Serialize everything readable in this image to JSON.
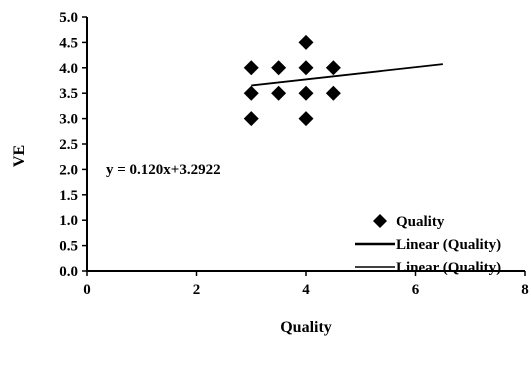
{
  "chart_data": {
    "type": "scatter",
    "xlabel": "Quality",
    "ylabel": "VE",
    "xlim": [
      0,
      8
    ],
    "ylim": [
      0.0,
      5.0
    ],
    "x_ticks": [
      0,
      2,
      4,
      6,
      8
    ],
    "y_ticks": [
      0.0,
      0.5,
      1.0,
      1.5,
      2.0,
      2.5,
      3.0,
      3.5,
      4.0,
      4.5,
      5.0
    ],
    "x_tick_labels": [
      "0",
      "2",
      "4",
      "6",
      "8"
    ],
    "y_tick_labels": [
      "0.0",
      "0.5",
      "1.0",
      "1.5",
      "2.0",
      "2.5",
      "3.0",
      "3.5",
      "4.0",
      "4.5",
      "5.0"
    ],
    "grid": false,
    "legend_position": "bottom-right",
    "series": [
      {
        "name": "Quality",
        "marker": "diamond",
        "color": "#000000",
        "points": [
          {
            "x": 3.0,
            "y": 4.0
          },
          {
            "x": 3.5,
            "y": 4.0
          },
          {
            "x": 4.0,
            "y": 4.0
          },
          {
            "x": 4.5,
            "y": 4.0
          },
          {
            "x": 4.0,
            "y": 4.5
          },
          {
            "x": 3.0,
            "y": 3.5
          },
          {
            "x": 3.5,
            "y": 3.5
          },
          {
            "x": 4.0,
            "y": 3.5
          },
          {
            "x": 4.5,
            "y": 3.5
          },
          {
            "x": 3.0,
            "y": 3.0
          },
          {
            "x": 4.0,
            "y": 3.0
          }
        ]
      }
    ],
    "trendline": {
      "x_start": 3.0,
      "x_end": 6.5,
      "slope": 0.12,
      "intercept": 3.2922,
      "equation_label": "y = 0.120x+3.2922"
    },
    "legend": [
      {
        "label": "Quality",
        "symbol": "diamond"
      },
      {
        "label": "Linear (Quality)",
        "symbol": "thick-line"
      },
      {
        "label": "Linear (Quality)",
        "symbol": "line"
      }
    ]
  }
}
